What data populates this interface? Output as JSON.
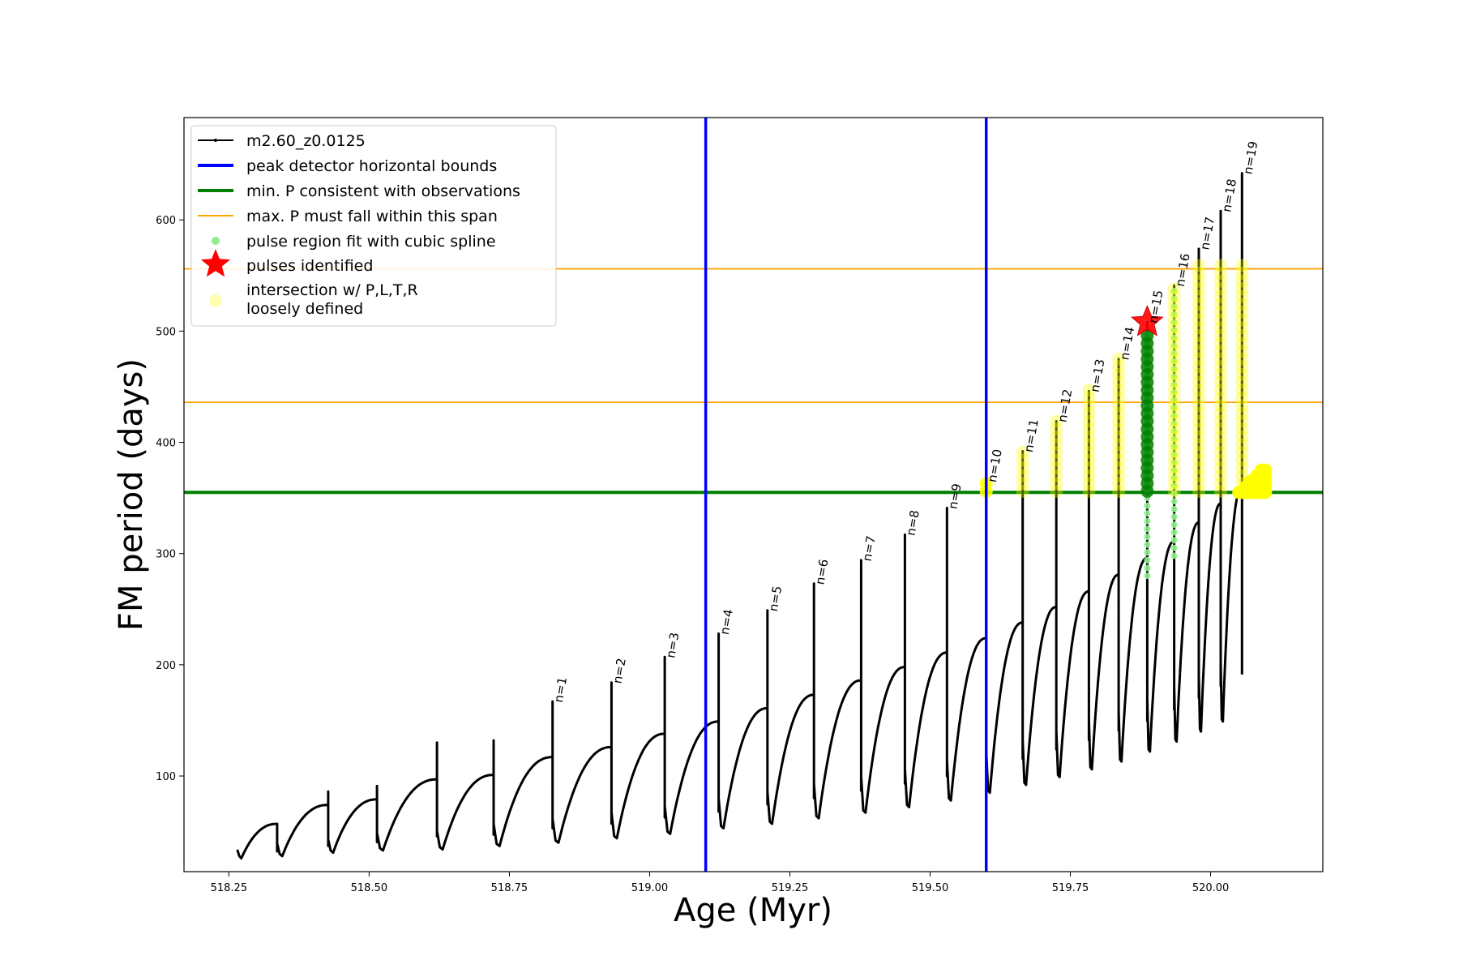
{
  "chart_data": {
    "type": "line",
    "xlabel": "Age (Myr)",
    "ylabel": "FM period (days)",
    "xlim": [
      518.17,
      520.2
    ],
    "ylim": [
      14,
      692
    ],
    "xticks": [
      518.25,
      518.5,
      518.75,
      519.0,
      519.25,
      519.5,
      519.75,
      520.0
    ],
    "xtick_labels": [
      "518.25",
      "518.50",
      "518.75",
      "519.00",
      "519.25",
      "519.50",
      "519.75",
      "520.00"
    ],
    "yticks": [
      100,
      200,
      300,
      400,
      500,
      600
    ],
    "ytick_labels": [
      "100",
      "200",
      "300",
      "400",
      "500",
      "600"
    ],
    "grid": false,
    "legend_position": "top-left",
    "legend": [
      {
        "label": "m2.60_z0.0125",
        "style": "black-line-dots"
      },
      {
        "label": "peak detector horizontal bounds",
        "style": "blue-line"
      },
      {
        "label": "min. P consistent with observations",
        "style": "green-line"
      },
      {
        "label": "max. P must fall within this span",
        "style": "orange-line"
      },
      {
        "label": "pulse region fit with cubic spline",
        "style": "lightgreen-dot"
      },
      {
        "label": "pulses identified",
        "style": "red-star"
      },
      {
        "label": "intersection w/ P,L,T,R",
        "label2": "loosely defined",
        "style": "yellow-dot"
      }
    ],
    "colors": {
      "track": "#000000",
      "bounds": "#0000ff",
      "min_p": "#008000",
      "max_p": "#ffa500",
      "spline": "#90ee90",
      "pulse_star": "#ff0000",
      "intersection": "#ffff00",
      "selected": "#008000"
    },
    "vertical_bounds_x": [
      519.6,
      519.1
    ],
    "min_period_y": 355,
    "max_period_span_y": [
      436,
      556
    ],
    "series": [
      {
        "name": "m2.60_z0.0125",
        "cycles": [
          {
            "start": 518.265,
            "end": 518.336,
            "trough": 26,
            "pre_peak": 57,
            "spike": 57
          },
          {
            "start": 518.336,
            "end": 518.427,
            "trough": 28,
            "pre_peak": 74,
            "spike": 86
          },
          {
            "start": 518.427,
            "end": 518.514,
            "trough": 31,
            "pre_peak": 79,
            "spike": 91
          },
          {
            "start": 518.514,
            "end": 518.621,
            "trough": 33,
            "pre_peak": 97,
            "spike": 130
          },
          {
            "start": 518.621,
            "end": 518.722,
            "trough": 34,
            "pre_peak": 101,
            "spike": 132
          },
          {
            "start": 518.722,
            "end": 518.827,
            "trough": 37,
            "pre_peak": 117,
            "spike": 167
          },
          {
            "start": 518.827,
            "end": 518.932,
            "trough": 40,
            "pre_peak": 126,
            "spike": 184
          },
          {
            "start": 518.932,
            "end": 519.027,
            "trough": 44,
            "pre_peak": 138,
            "spike": 207
          },
          {
            "start": 519.027,
            "end": 519.123,
            "trough": 48,
            "pre_peak": 149,
            "spike": 228
          },
          {
            "start": 519.123,
            "end": 519.21,
            "trough": 53,
            "pre_peak": 161,
            "spike": 249
          },
          {
            "start": 519.21,
            "end": 519.293,
            "trough": 57,
            "pre_peak": 173,
            "spike": 273
          },
          {
            "start": 519.293,
            "end": 519.377,
            "trough": 62,
            "pre_peak": 186,
            "spike": 294
          },
          {
            "start": 519.377,
            "end": 519.455,
            "trough": 67,
            "pre_peak": 198,
            "spike": 317
          },
          {
            "start": 519.455,
            "end": 519.53,
            "trough": 72,
            "pre_peak": 211,
            "spike": 341
          },
          {
            "start": 519.53,
            "end": 519.6,
            "trough": 78,
            "pre_peak": 224,
            "spike": 365
          },
          {
            "start": 519.6,
            "end": 519.665,
            "trough": 85,
            "pre_peak": 238,
            "spike": 392
          },
          {
            "start": 519.665,
            "end": 519.725,
            "trough": 92,
            "pre_peak": 252,
            "spike": 419
          },
          {
            "start": 519.725,
            "end": 519.783,
            "trough": 99,
            "pre_peak": 266,
            "spike": 446
          },
          {
            "start": 519.783,
            "end": 519.836,
            "trough": 106,
            "pre_peak": 281,
            "spike": 475
          },
          {
            "start": 519.836,
            "end": 519.887,
            "trough": 113,
            "pre_peak": 296,
            "spike": 508
          },
          {
            "start": 519.887,
            "end": 519.935,
            "trough": 122,
            "pre_peak": 311,
            "spike": 541
          },
          {
            "start": 519.935,
            "end": 519.979,
            "trough": 131,
            "pre_peak": 328,
            "spike": 574
          },
          {
            "start": 519.979,
            "end": 520.018,
            "trough": 140,
            "pre_peak": 345,
            "spike": 608
          },
          {
            "start": 520.018,
            "end": 520.056,
            "trough": 149,
            "pre_peak": 360,
            "spike": 642
          }
        ]
      }
    ],
    "pulse_labels": [
      {
        "text": "n=1",
        "x": 518.827,
        "y": 167
      },
      {
        "text": "n=2",
        "x": 518.932,
        "y": 184
      },
      {
        "text": "n=3",
        "x": 519.027,
        "y": 207
      },
      {
        "text": "n=4",
        "x": 519.123,
        "y": 228
      },
      {
        "text": "n=5",
        "x": 519.21,
        "y": 249
      },
      {
        "text": "n=6",
        "x": 519.293,
        "y": 273
      },
      {
        "text": "n=7",
        "x": 519.377,
        "y": 294
      },
      {
        "text": "n=8",
        "x": 519.455,
        "y": 317
      },
      {
        "text": "n=9",
        "x": 519.53,
        "y": 341
      },
      {
        "text": "n=10",
        "x": 519.6,
        "y": 365
      },
      {
        "text": "n=11",
        "x": 519.665,
        "y": 392
      },
      {
        "text": "n=12",
        "x": 519.725,
        "y": 419
      },
      {
        "text": "n=13",
        "x": 519.783,
        "y": 446
      },
      {
        "text": "n=14",
        "x": 519.836,
        "y": 475
      },
      {
        "text": "n=15",
        "x": 519.887,
        "y": 508
      },
      {
        "text": "n=16",
        "x": 519.935,
        "y": 541
      },
      {
        "text": "n=17",
        "x": 519.979,
        "y": 574
      },
      {
        "text": "n=18",
        "x": 520.018,
        "y": 608
      },
      {
        "text": "n=19",
        "x": 520.056,
        "y": 642
      }
    ],
    "intersection_regions": [
      {
        "x": 519.6,
        "y_range": [
          356,
          368
        ]
      },
      {
        "x": 519.665,
        "y_range": [
          356,
          394
        ]
      },
      {
        "x": 519.725,
        "y_range": [
          356,
          421
        ]
      },
      {
        "x": 519.783,
        "y_range": [
          356,
          448
        ]
      },
      {
        "x": 519.836,
        "y_range": [
          356,
          477
        ]
      },
      {
        "x": 519.935,
        "y_range": [
          356,
          541
        ]
      },
      {
        "x": 519.979,
        "y_range": [
          356,
          560
        ]
      },
      {
        "x": 520.018,
        "y_range": [
          356,
          560
        ]
      },
      {
        "x": 520.056,
        "y_range": [
          356,
          560
        ]
      }
    ],
    "end_blob": {
      "x_range": [
        520.05,
        520.1
      ],
      "y_range": [
        355,
        381
      ]
    },
    "spline_regions": [
      {
        "x": 519.887,
        "y_range": [
          280,
          500
        ]
      },
      {
        "x": 519.935,
        "y_range": [
          298,
          541
        ]
      }
    ],
    "selected_pulse": {
      "x": 519.887,
      "y_range": [
        356,
        500
      ]
    },
    "pulse_identified": {
      "x": 519.887,
      "y": 508
    }
  }
}
